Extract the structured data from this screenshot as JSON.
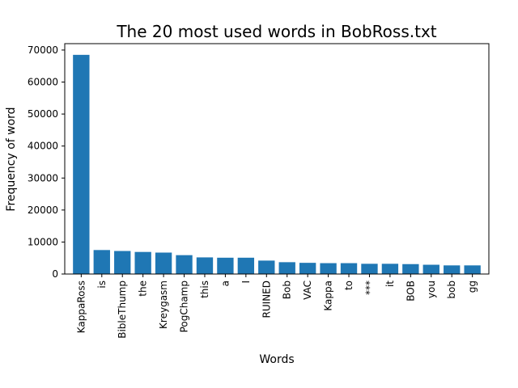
{
  "chart_data": {
    "type": "bar",
    "title": "The 20 most used words in BobRoss.txt",
    "xlabel": "Words",
    "ylabel": "Frequency of word",
    "ylim": [
      0,
      72000
    ],
    "yticks": [
      0,
      10000,
      20000,
      30000,
      40000,
      50000,
      60000,
      70000
    ],
    "grid": false,
    "bar_color": "#1f77b4",
    "categories": [
      "KappaRoss",
      "is",
      "BibleThump",
      "the",
      "Kreygasm",
      "PogChamp",
      "this",
      "a",
      "I",
      "RUINED",
      "Bob",
      "VAC",
      "Kappa",
      "to",
      "***",
      "it",
      "BOB",
      "you",
      "bob",
      "gg"
    ],
    "values": [
      68500,
      7500,
      7200,
      6900,
      6700,
      5900,
      5200,
      5100,
      5100,
      4200,
      3700,
      3500,
      3400,
      3400,
      3200,
      3200,
      3100,
      2900,
      2700,
      2700
    ]
  }
}
